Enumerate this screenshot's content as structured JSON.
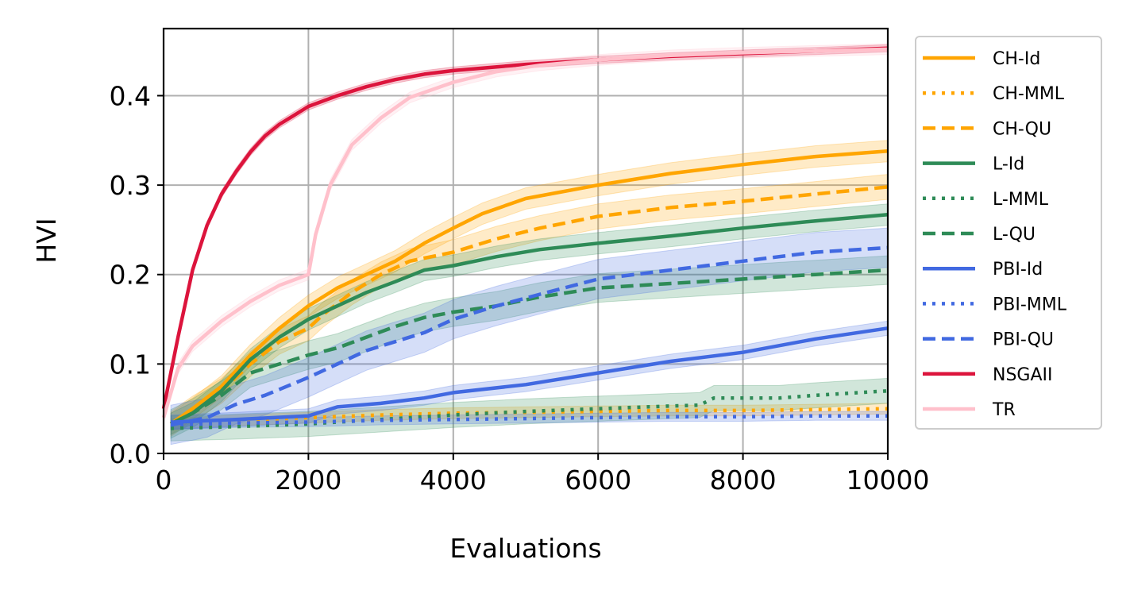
{
  "chart_data": {
    "type": "line",
    "title": "",
    "xlabel": "Evaluations",
    "ylabel": "HVI",
    "xlim": [
      0,
      10000
    ],
    "ylim": [
      0,
      0.475
    ],
    "xticks": [
      0,
      2000,
      4000,
      6000,
      8000,
      10000
    ],
    "xtick_labels": [
      "0",
      "2000",
      "4000",
      "6000",
      "8000",
      "10000"
    ],
    "yticks": [
      0.0,
      0.1,
      0.2,
      0.3,
      0.4
    ],
    "ytick_labels": [
      "0.0",
      "0.1",
      "0.2",
      "0.3",
      "0.4"
    ],
    "grid": true,
    "legend_position": "outside-right",
    "series": [
      {
        "name": "CH-Id",
        "color": "#FFA500",
        "style": "solid",
        "x": [
          100,
          400,
          800,
          1200,
          1600,
          2000,
          2400,
          2800,
          3200,
          3600,
          4000,
          4400,
          5000,
          6000,
          7000,
          8000,
          9000,
          10000
        ],
        "y": [
          0.033,
          0.05,
          0.075,
          0.11,
          0.14,
          0.165,
          0.185,
          0.2,
          0.215,
          0.235,
          0.252,
          0.268,
          0.285,
          0.3,
          0.313,
          0.323,
          0.332,
          0.338
        ],
        "band": 0.012
      },
      {
        "name": "CH-MML",
        "color": "#FFA500",
        "style": "dotted",
        "x": [
          100,
          1000,
          2000,
          3000,
          4000,
          5000,
          6000,
          7000,
          8000,
          9000,
          10000
        ],
        "y": [
          0.033,
          0.037,
          0.04,
          0.043,
          0.045,
          0.046,
          0.047,
          0.048,
          0.048,
          0.049,
          0.05
        ],
        "band": 0.006
      },
      {
        "name": "CH-QU",
        "color": "#FFA500",
        "style": "dashed",
        "x": [
          100,
          400,
          800,
          1200,
          1600,
          2000,
          2200,
          2600,
          3000,
          3400,
          4000,
          4600,
          5200,
          6000,
          7000,
          8000,
          9000,
          10000
        ],
        "y": [
          0.033,
          0.05,
          0.07,
          0.1,
          0.125,
          0.14,
          0.155,
          0.18,
          0.2,
          0.215,
          0.225,
          0.24,
          0.252,
          0.265,
          0.275,
          0.282,
          0.29,
          0.298
        ],
        "band": 0.014
      },
      {
        "name": "L-Id",
        "color": "#2E8B57",
        "style": "solid",
        "x": [
          100,
          400,
          800,
          1200,
          1600,
          2000,
          2400,
          2800,
          3200,
          3600,
          4000,
          4600,
          5200,
          6000,
          7000,
          8000,
          9000,
          10000
        ],
        "y": [
          0.033,
          0.045,
          0.07,
          0.105,
          0.13,
          0.15,
          0.165,
          0.18,
          0.192,
          0.205,
          0.21,
          0.22,
          0.228,
          0.235,
          0.243,
          0.252,
          0.26,
          0.267
        ],
        "band": 0.012
      },
      {
        "name": "L-MML",
        "color": "#2E8B57",
        "style": "dotted",
        "x": [
          100,
          1000,
          2000,
          3000,
          4000,
          5000,
          6000,
          7000,
          7400,
          7600,
          8500,
          9000,
          10000
        ],
        "y": [
          0.028,
          0.03,
          0.033,
          0.038,
          0.043,
          0.047,
          0.05,
          0.053,
          0.054,
          0.062,
          0.062,
          0.065,
          0.07
        ],
        "band": 0.014
      },
      {
        "name": "L-QU",
        "color": "#2E8B57",
        "style": "dashed",
        "x": [
          100,
          400,
          800,
          1200,
          1600,
          2000,
          2400,
          2800,
          3200,
          3600,
          4000,
          4600,
          5200,
          6000,
          7000,
          8000,
          9000,
          10000
        ],
        "y": [
          0.033,
          0.045,
          0.065,
          0.09,
          0.1,
          0.11,
          0.118,
          0.13,
          0.142,
          0.152,
          0.158,
          0.165,
          0.175,
          0.185,
          0.19,
          0.195,
          0.2,
          0.205
        ],
        "band": 0.016
      },
      {
        "name": "PBI-Id",
        "color": "#4169E1",
        "style": "solid",
        "x": [
          100,
          1000,
          2000,
          2400,
          3000,
          3600,
          4000,
          5000,
          6000,
          7000,
          8000,
          9000,
          10000
        ],
        "y": [
          0.035,
          0.038,
          0.042,
          0.052,
          0.056,
          0.062,
          0.068,
          0.077,
          0.09,
          0.103,
          0.113,
          0.128,
          0.14
        ],
        "band": 0.008
      },
      {
        "name": "PBI-MML",
        "color": "#4169E1",
        "style": "dotted",
        "x": [
          100,
          1000,
          2000,
          3000,
          4000,
          5000,
          6000,
          7000,
          8000,
          9000,
          10000
        ],
        "y": [
          0.032,
          0.034,
          0.035,
          0.037,
          0.038,
          0.039,
          0.04,
          0.041,
          0.041,
          0.042,
          0.042
        ],
        "band": 0.005
      },
      {
        "name": "PBI-QU",
        "color": "#4169E1",
        "style": "dashed",
        "x": [
          100,
          600,
          1000,
          1400,
          2000,
          2400,
          2800,
          3200,
          3600,
          4000,
          4600,
          5200,
          6000,
          7000,
          8000,
          9000,
          10000
        ],
        "y": [
          0.032,
          0.04,
          0.055,
          0.065,
          0.085,
          0.1,
          0.115,
          0.125,
          0.135,
          0.15,
          0.165,
          0.178,
          0.195,
          0.205,
          0.215,
          0.225,
          0.23
        ],
        "band": 0.022
      },
      {
        "name": "NSGAII",
        "color": "#DC143C",
        "style": "solid",
        "x": [
          0,
          200,
          400,
          600,
          800,
          1000,
          1200,
          1400,
          1600,
          1800,
          2000,
          2400,
          2800,
          3200,
          3600,
          4000,
          5000,
          6000,
          7000,
          8000,
          9000,
          10000
        ],
        "y": [
          0.05,
          0.13,
          0.205,
          0.255,
          0.29,
          0.315,
          0.337,
          0.355,
          0.368,
          0.378,
          0.388,
          0.4,
          0.41,
          0.418,
          0.424,
          0.428,
          0.435,
          0.44,
          0.444,
          0.447,
          0.45,
          0.453
        ],
        "band": 0.004
      },
      {
        "name": "TR",
        "color": "#FFC0CB",
        "style": "solid",
        "x": [
          0,
          200,
          400,
          800,
          1200,
          1600,
          2000,
          2100,
          2300,
          2600,
          3000,
          3400,
          4000,
          4600,
          5200,
          6000,
          7000,
          8000,
          9000,
          10000
        ],
        "y": [
          0.04,
          0.095,
          0.12,
          0.148,
          0.17,
          0.188,
          0.2,
          0.245,
          0.3,
          0.345,
          0.375,
          0.398,
          0.415,
          0.427,
          0.434,
          0.44,
          0.445,
          0.448,
          0.45,
          0.452
        ],
        "band": 0.006
      }
    ]
  }
}
